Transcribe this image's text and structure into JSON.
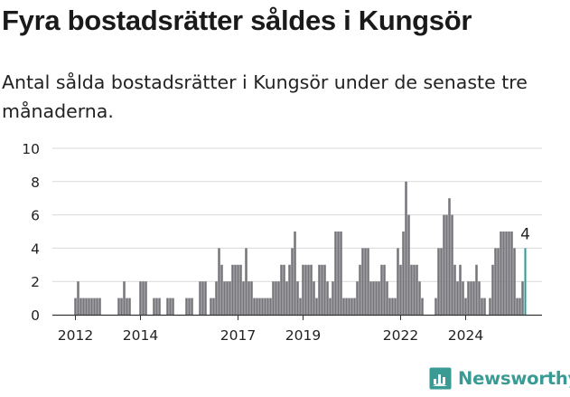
{
  "title": "Fyra bostadsrätter såldes i Kungsör",
  "subtitle": "Antal sålda bostadsrätter i Kungsör under de senaste tre månaderna.",
  "brand": "Newsworthy",
  "colors": {
    "bar": "#76767a",
    "highlight": "#2a9a94",
    "grid": "#d9d9d9",
    "brand": "#3a9a94"
  },
  "chart_data": {
    "type": "bar",
    "title": "",
    "xlabel": "",
    "ylabel": "",
    "ylim": [
      0,
      10
    ],
    "y_ticks": [
      0,
      2,
      4,
      6,
      8,
      10
    ],
    "x_tick_labels": [
      "2012",
      "2014",
      "2017",
      "2019",
      "2022",
      "2024"
    ],
    "x_ticks_at": [
      {
        "label": "2012",
        "index": 7
      },
      {
        "label": "2014",
        "index": 31
      },
      {
        "label": "2017",
        "index": 67
      },
      {
        "label": "2019",
        "index": 91
      },
      {
        "label": "2022",
        "index": 127
      },
      {
        "label": "2024",
        "index": 151
      }
    ],
    "last_value_label": "4",
    "values": [
      0,
      0,
      0,
      0,
      0,
      0,
      0,
      1,
      2,
      1,
      1,
      1,
      1,
      1,
      1,
      1,
      1,
      0,
      0,
      0,
      0,
      0,
      0,
      1,
      1,
      2,
      1,
      1,
      0,
      0,
      0,
      2,
      2,
      2,
      0,
      0,
      1,
      1,
      1,
      0,
      0,
      1,
      1,
      1,
      0,
      0,
      0,
      0,
      1,
      1,
      1,
      0,
      0,
      2,
      2,
      2,
      0,
      1,
      1,
      2,
      4,
      3,
      2,
      2,
      2,
      3,
      3,
      3,
      3,
      2,
      4,
      2,
      2,
      1,
      1,
      1,
      1,
      1,
      1,
      1,
      2,
      2,
      2,
      3,
      3,
      2,
      3,
      4,
      5,
      2,
      1,
      3,
      3,
      3,
      3,
      2,
      1,
      3,
      3,
      3,
      2,
      1,
      2,
      5,
      5,
      5,
      1,
      1,
      1,
      1,
      1,
      2,
      3,
      4,
      4,
      4,
      2,
      2,
      2,
      2,
      3,
      3,
      2,
      1,
      1,
      1,
      4,
      3,
      5,
      8,
      6,
      3,
      3,
      3,
      2,
      1,
      0,
      0,
      0,
      0,
      1,
      4,
      4,
      6,
      6,
      7,
      6,
      3,
      2,
      3,
      2,
      1,
      2,
      2,
      2,
      3,
      2,
      1,
      1,
      0,
      1,
      3,
      4,
      4,
      5,
      5,
      5,
      5,
      5,
      4,
      1,
      1,
      2,
      4
    ]
  }
}
